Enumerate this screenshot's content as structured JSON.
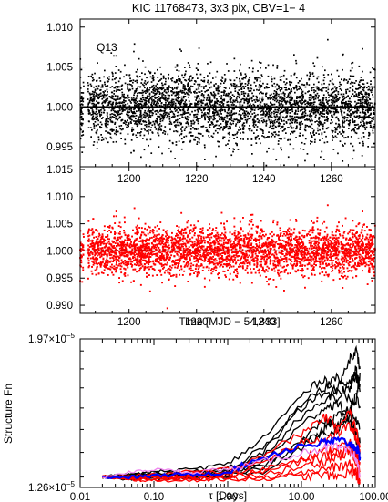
{
  "figure_title": "KIC 11768473,  3x3 pix, CBV=1− 4",
  "colors": {
    "raw_points": "#000000",
    "corrected_points": "#ff0000",
    "sf_black": "#000000",
    "sf_red": "#ff0000",
    "sf_blue": "#0000ff",
    "sf_violet": "#ee82ee"
  },
  "chart_data": [
    {
      "type": "scatter",
      "panel": "raw-light-curve",
      "annotation": "Q13",
      "x_range": [
        1185.5,
        1273
      ],
      "ylim": [
        0.9925,
        1.011
      ],
      "yticks": [
        "1.010",
        "1.005",
        "1.000",
        "0.995"
      ],
      "ytick_values": [
        1.01,
        1.005,
        1.0,
        0.995
      ],
      "mean_level": 1.0,
      "scatter_sigma": 0.0022,
      "gap_x": [
        1186.6,
        1187.8
      ],
      "grid": false
    },
    {
      "type": "scatter",
      "panel": "corrected-light-curve",
      "ylim": [
        0.9885,
        1.0155
      ],
      "yticks": [
        "1.015",
        "1.010",
        "1.005",
        "1.000",
        "0.995",
        "0.990"
      ],
      "ytick_values": [
        1.015,
        1.01,
        1.005,
        1.0,
        0.995,
        0.99
      ],
      "x_range": [
        1185.5,
        1273
      ],
      "xticks": [
        "1200",
        "1220",
        "1240",
        "1260"
      ],
      "xtick_values": [
        1200,
        1220,
        1240,
        1260
      ],
      "xlabel": "Time [MJD − 54,833]",
      "mean_level": 1.0,
      "scatter_sigma": 0.0022,
      "gap_x": [
        1186.6,
        1187.8
      ],
      "grid": false
    },
    {
      "type": "line",
      "panel": "structure-function",
      "xlabel": "τ [Days]",
      "ylabel": "Structure Fn",
      "xscale": "log",
      "yscale": "log",
      "xlim": [
        0.01,
        100
      ],
      "ylim": [
        1.26e-05,
        1.97e-05
      ],
      "xticks": [
        "0.01",
        "0.10",
        "1.00",
        "10.00",
        "100.00"
      ],
      "xtick_values": [
        0.01,
        0.1,
        1,
        10,
        100
      ],
      "yticks": [
        {
          "mantissa": "1.97",
          "exp": "−5",
          "value": 1.97e-05
        },
        {
          "mantissa": "1.26",
          "exp": "−5",
          "value": 1.26e-05
        }
      ],
      "series": [
        {
          "color": "#000000",
          "x": [
            0.02,
            0.05,
            0.1,
            0.3,
            1,
            3,
            10,
            20,
            30,
            45,
            55,
            62
          ],
          "y": [
            1.3e-05,
            1.31e-05,
            1.3e-05,
            1.31e-05,
            1.32e-05,
            1.4e-05,
            1.6e-05,
            1.7e-05,
            1.75e-05,
            1.7e-05,
            1.8e-05,
            1.68e-05
          ]
        },
        {
          "color": "#000000",
          "x": [
            0.02,
            0.05,
            0.1,
            0.3,
            1,
            3,
            10,
            20,
            30,
            45,
            55,
            62
          ],
          "y": [
            1.3e-05,
            1.305e-05,
            1.31e-05,
            1.32e-05,
            1.33e-05,
            1.42e-05,
            1.62e-05,
            1.68e-05,
            1.65e-05,
            1.72e-05,
            1.76e-05,
            1.72e-05
          ]
        },
        {
          "color": "#000000",
          "x": [
            0.02,
            0.05,
            0.1,
            0.3,
            1,
            3,
            10,
            20,
            30,
            45,
            55,
            62
          ],
          "y": [
            1.3e-05,
            1.3e-05,
            1.31e-05,
            1.29e-05,
            1.31e-05,
            1.36e-05,
            1.52e-05,
            1.6e-05,
            1.62e-05,
            1.58e-05,
            1.66e-05,
            1.6e-05
          ]
        },
        {
          "color": "#000000",
          "x": [
            0.02,
            0.05,
            0.1,
            0.3,
            1,
            3,
            10,
            20,
            30,
            45,
            55,
            62
          ],
          "y": [
            1.3e-05,
            1.29e-05,
            1.3e-05,
            1.31e-05,
            1.3e-05,
            1.32e-05,
            1.42e-05,
            1.5e-05,
            1.56e-05,
            1.6e-05,
            1.54e-05,
            1.5e-05
          ]
        },
        {
          "color": "#000000",
          "x": [
            0.02,
            0.05,
            0.1,
            0.3,
            1,
            3,
            10,
            20,
            30,
            45,
            55,
            62
          ],
          "y": [
            1.3e-05,
            1.31e-05,
            1.32e-05,
            1.3e-05,
            1.32e-05,
            1.34e-05,
            1.46e-05,
            1.54e-05,
            1.52e-05,
            1.56e-05,
            1.5e-05,
            1.44e-05
          ]
        },
        {
          "color": "#000000",
          "x": [
            0.02,
            0.05,
            0.1,
            0.3,
            1,
            3,
            10,
            20,
            30,
            45,
            55,
            62
          ],
          "y": [
            1.3e-05,
            1.31e-05,
            1.3e-05,
            1.31e-05,
            1.32e-05,
            1.38e-05,
            1.56e-05,
            1.62e-05,
            1.7e-05,
            1.64e-05,
            1.62e-05,
            1.78e-05
          ]
        },
        {
          "color": "#000000",
          "x": [
            0.02,
            0.05,
            0.1,
            0.3,
            1,
            3,
            10,
            20,
            30,
            45,
            55,
            62
          ],
          "y": [
            1.3e-05,
            1.3e-05,
            1.29e-05,
            1.3e-05,
            1.31e-05,
            1.34e-05,
            1.44e-05,
            1.48e-05,
            1.5e-05,
            1.54e-05,
            1.46e-05,
            1.4e-05
          ]
        },
        {
          "color": "#000000",
          "x": [
            0.02,
            0.05,
            0.1,
            0.3,
            1,
            3,
            10,
            20,
            30,
            45,
            55,
            62
          ],
          "y": [
            1.3e-05,
            1.31e-05,
            1.32e-05,
            1.33e-05,
            1.35e-05,
            1.46e-05,
            1.66e-05,
            1.75e-05,
            1.68e-05,
            1.86e-05,
            1.9e-05,
            1.8e-05
          ]
        },
        {
          "color": "#ff0000",
          "x": [
            0.02,
            0.05,
            0.1,
            0.3,
            1,
            3,
            10,
            20,
            30,
            45,
            55,
            62
          ],
          "y": [
            1.3e-05,
            1.295e-05,
            1.3e-05,
            1.295e-05,
            1.31e-05,
            1.33e-05,
            1.38e-05,
            1.4e-05,
            1.42e-05,
            1.44e-05,
            1.4e-05,
            1.36e-05
          ]
        },
        {
          "color": "#ff0000",
          "x": [
            0.02,
            0.05,
            0.1,
            0.3,
            1,
            3,
            10,
            20,
            30,
            45,
            55,
            62
          ],
          "y": [
            1.3e-05,
            1.3e-05,
            1.29e-05,
            1.3e-05,
            1.3e-05,
            1.31e-05,
            1.34e-05,
            1.36e-05,
            1.38e-05,
            1.4e-05,
            1.38e-05,
            1.32e-05
          ]
        },
        {
          "color": "#ff0000",
          "x": [
            0.02,
            0.05,
            0.1,
            0.3,
            1,
            3,
            10,
            20,
            30,
            45,
            55,
            62
          ],
          "y": [
            1.3e-05,
            1.29e-05,
            1.3e-05,
            1.29e-05,
            1.295e-05,
            1.3e-05,
            1.32e-05,
            1.33e-05,
            1.34e-05,
            1.35e-05,
            1.32e-05,
            1.29e-05
          ]
        },
        {
          "color": "#ff0000",
          "x": [
            0.02,
            0.05,
            0.1,
            0.3,
            1,
            3,
            10,
            20,
            30,
            45,
            55,
            62
          ],
          "y": [
            1.3e-05,
            1.305e-05,
            1.31e-05,
            1.32e-05,
            1.33e-05,
            1.39e-05,
            1.48e-05,
            1.56e-05,
            1.52e-05,
            1.58e-05,
            1.5e-05,
            1.42e-05
          ]
        },
        {
          "color": "#ff0000",
          "x": [
            0.02,
            0.05,
            0.1,
            0.3,
            1,
            3,
            10,
            20,
            30,
            45,
            55,
            62
          ],
          "y": [
            1.3e-05,
            1.29e-05,
            1.285e-05,
            1.29e-05,
            1.29e-05,
            1.3e-05,
            1.3e-05,
            1.31e-05,
            1.3e-05,
            1.32e-05,
            1.3e-05,
            1.28e-05
          ]
        },
        {
          "color": "#ff0000",
          "x": [
            0.02,
            0.05,
            0.1,
            0.3,
            1,
            3,
            10,
            20,
            30,
            45,
            55,
            62
          ],
          "y": [
            1.3e-05,
            1.3e-05,
            1.3e-05,
            1.31e-05,
            1.32e-05,
            1.36e-05,
            1.44e-05,
            1.46e-05,
            1.48e-05,
            1.52e-05,
            1.46e-05,
            1.4e-05
          ]
        },
        {
          "color": "#ff0000",
          "x": [
            0.02,
            0.05,
            0.1,
            0.3,
            1,
            3,
            10,
            20,
            30,
            45,
            55,
            62
          ],
          "y": [
            1.3e-05,
            1.295e-05,
            1.29e-05,
            1.3e-05,
            1.305e-05,
            1.32e-05,
            1.36e-05,
            1.38e-05,
            1.4e-05,
            1.42e-05,
            1.36e-05,
            1.3e-05
          ]
        },
        {
          "color": "#0000ff",
          "x": [
            0.02,
            0.05,
            0.1,
            0.3,
            1,
            3,
            10,
            20,
            30,
            45,
            55,
            62
          ],
          "y": [
            1.3e-05,
            1.3e-05,
            1.305e-05,
            1.31e-05,
            1.32e-05,
            1.38e-05,
            1.43e-05,
            1.44e-05,
            1.45e-05,
            1.44e-05,
            1.42e-05,
            1.38e-05
          ]
        },
        {
          "color": "#ee82ee",
          "x": [
            0.02,
            0.05,
            0.1,
            0.3,
            1,
            3,
            10,
            20,
            30,
            45,
            55,
            62
          ],
          "y": [
            1.3e-05,
            1.32e-05,
            1.33e-05,
            1.32e-05,
            1.33e-05,
            1.36e-05,
            1.4e-05,
            1.42e-05,
            1.42e-05,
            1.4e-05,
            1.38e-05,
            1.3e-05
          ]
        }
      ],
      "grid": false
    }
  ]
}
